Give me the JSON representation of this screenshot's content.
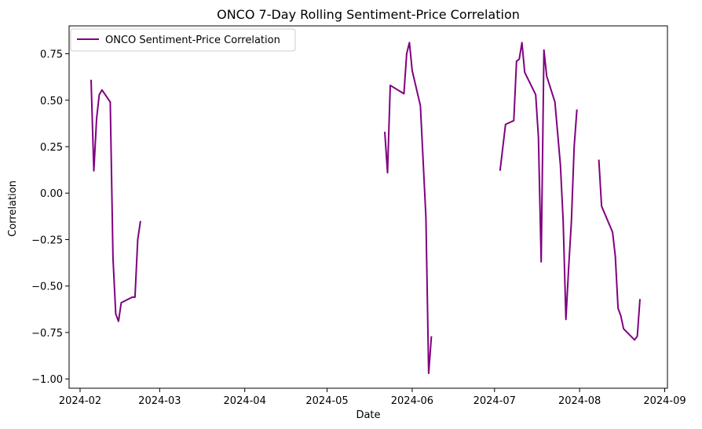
{
  "chart_data": {
    "type": "line",
    "title": "ONCO 7-Day Rolling Sentiment-Price Correlation",
    "xlabel": "Date",
    "ylabel": "Correlation",
    "xlim": [
      "2024-01-28",
      "2024-09-02"
    ],
    "ylim": [
      -1.05,
      0.9
    ],
    "x_ticks": [
      "2024-02-01",
      "2024-03-01",
      "2024-04-01",
      "2024-05-01",
      "2024-06-01",
      "2024-07-01",
      "2024-08-01",
      "2024-09-01"
    ],
    "x_tick_labels": [
      "2024-02",
      "2024-03",
      "2024-04",
      "2024-05",
      "2024-06",
      "2024-07",
      "2024-08",
      "2024-09"
    ],
    "y_ticks": [
      -1.0,
      -0.75,
      -0.5,
      -0.25,
      0.0,
      0.25,
      0.5,
      0.75
    ],
    "y_tick_labels": [
      "−1.00",
      "−0.75",
      "−0.50",
      "−0.25",
      "0.00",
      "0.25",
      "0.50",
      "0.75"
    ],
    "grid": false,
    "legend_position": "top-left",
    "series": [
      {
        "name": "ONCO Sentiment-Price Correlation",
        "color": "#800080",
        "segments": [
          [
            [
              "2024-02-05",
              0.61
            ],
            [
              "2024-02-06",
              0.12
            ],
            [
              "2024-02-07",
              0.4
            ],
            [
              "2024-02-08",
              0.53
            ],
            [
              "2024-02-09",
              0.555
            ],
            [
              "2024-02-12",
              0.49
            ],
            [
              "2024-02-13",
              -0.35
            ],
            [
              "2024-02-14",
              -0.65
            ],
            [
              "2024-02-15",
              -0.69
            ],
            [
              "2024-02-16",
              -0.59
            ],
            [
              "2024-02-20",
              -0.56
            ],
            [
              "2024-02-21",
              -0.56
            ],
            [
              "2024-02-22",
              -0.25
            ],
            [
              "2024-02-23",
              -0.15
            ]
          ],
          [
            [
              "2024-05-22",
              0.33
            ],
            [
              "2024-05-23",
              0.11
            ],
            [
              "2024-05-24",
              0.58
            ],
            [
              "2024-05-29",
              0.535
            ],
            [
              "2024-05-30",
              0.75
            ],
            [
              "2024-05-31",
              0.81
            ],
            [
              "2024-06-01",
              0.66
            ],
            [
              "2024-06-04",
              0.47
            ],
            [
              "2024-06-06",
              -0.13
            ],
            [
              "2024-06-07",
              -0.97
            ],
            [
              "2024-06-08",
              -0.77
            ]
          ],
          [
            [
              "2024-07-03",
              0.12
            ],
            [
              "2024-07-05",
              0.37
            ],
            [
              "2024-07-08",
              0.39
            ],
            [
              "2024-07-09",
              0.71
            ],
            [
              "2024-07-10",
              0.72
            ],
            [
              "2024-07-11",
              0.81
            ],
            [
              "2024-07-12",
              0.65
            ],
            [
              "2024-07-16",
              0.53
            ],
            [
              "2024-07-17",
              0.3
            ],
            [
              "2024-07-18",
              -0.37
            ],
            [
              "2024-07-19",
              0.77
            ],
            [
              "2024-07-20",
              0.63
            ],
            [
              "2024-07-23",
              0.49
            ],
            [
              "2024-07-25",
              0.15
            ],
            [
              "2024-07-26",
              -0.15
            ],
            [
              "2024-07-27",
              -0.68
            ],
            [
              "2024-07-28",
              -0.4
            ],
            [
              "2024-07-29",
              -0.15
            ],
            [
              "2024-07-30",
              0.25
            ],
            [
              "2024-07-31",
              0.45
            ]
          ],
          [
            [
              "2024-08-08",
              0.18
            ],
            [
              "2024-08-09",
              -0.07
            ],
            [
              "2024-08-13",
              -0.21
            ],
            [
              "2024-08-14",
              -0.34
            ],
            [
              "2024-08-15",
              -0.62
            ],
            [
              "2024-08-16",
              -0.66
            ],
            [
              "2024-08-17",
              -0.73
            ],
            [
              "2024-08-21",
              -0.79
            ],
            [
              "2024-08-22",
              -0.77
            ],
            [
              "2024-08-23",
              -0.57
            ]
          ]
        ]
      }
    ]
  }
}
